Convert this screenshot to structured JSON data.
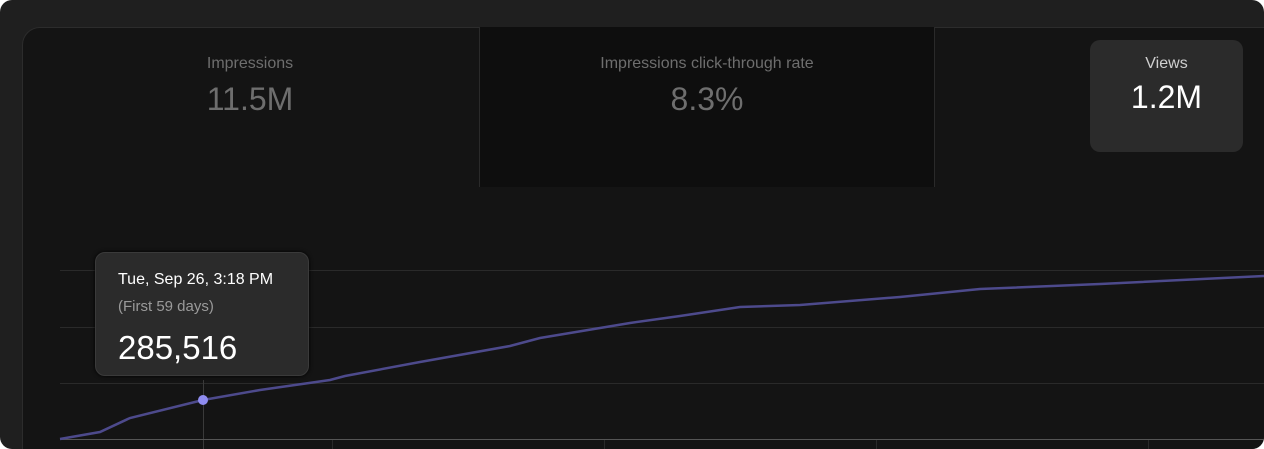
{
  "metrics": [
    {
      "label": "Impressions",
      "value": "11.5M"
    },
    {
      "label": "Impressions click-through rate",
      "value": "8.3%"
    },
    {
      "label": "Views",
      "value": "1.2M"
    }
  ],
  "tooltip": {
    "date": "Tue, Sep 26, 3:18 PM",
    "note": "(First 59 days)",
    "value": "285,516"
  }
}
